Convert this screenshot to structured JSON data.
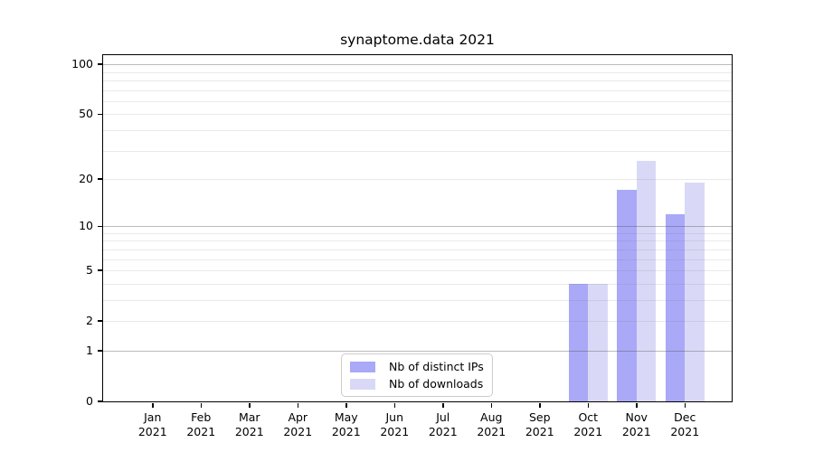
{
  "chart_data": {
    "type": "bar",
    "title": "synaptome.data 2021",
    "x": {
      "months": [
        "Jan",
        "Feb",
        "Mar",
        "Apr",
        "May",
        "Jun",
        "Jul",
        "Aug",
        "Sep",
        "Oct",
        "Nov",
        "Dec"
      ],
      "year": "2021"
    },
    "series": [
      {
        "name": "Nb of distinct IPs",
        "color": "#a9a9f7",
        "values": [
          0,
          0,
          0,
          0,
          0,
          0,
          0,
          0,
          0,
          4,
          17,
          12
        ]
      },
      {
        "name": "Nb of downloads",
        "color": "#d9d9f7",
        "values": [
          0,
          0,
          0,
          0,
          0,
          0,
          0,
          0,
          0,
          4,
          26,
          19
        ]
      }
    ],
    "y": {
      "scale": "log1p",
      "ticks": [
        0,
        1,
        2,
        5,
        10,
        20,
        50,
        100
      ],
      "max": 113.5,
      "major_gridlines": [
        1,
        10,
        100
      ],
      "minor_gridlines": [
        2,
        3,
        4,
        5,
        6,
        7,
        8,
        9,
        20,
        30,
        40,
        50,
        60,
        70,
        80,
        90
      ]
    },
    "legend_position": "bottom-center",
    "grid": true
  }
}
